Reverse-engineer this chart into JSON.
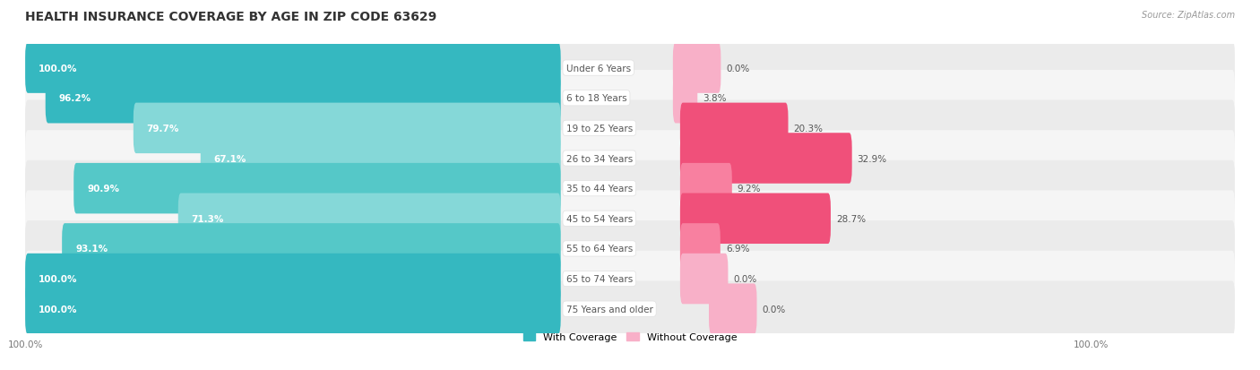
{
  "title": "HEALTH INSURANCE COVERAGE BY AGE IN ZIP CODE 63629",
  "source": "Source: ZipAtlas.com",
  "categories": [
    "Under 6 Years",
    "6 to 18 Years",
    "19 to 25 Years",
    "26 to 34 Years",
    "35 to 44 Years",
    "45 to 54 Years",
    "55 to 64 Years",
    "65 to 74 Years",
    "75 Years and older"
  ],
  "with_coverage": [
    100.0,
    96.2,
    79.7,
    67.1,
    90.9,
    71.3,
    93.1,
    100.0,
    100.0
  ],
  "without_coverage": [
    0.0,
    3.8,
    20.3,
    32.9,
    9.2,
    28.7,
    6.9,
    0.0,
    0.0
  ],
  "color_with_dark": "#35B8C0",
  "color_with_medium": "#55C8C8",
  "color_with_light": "#85D8D8",
  "color_without_dark": "#F0507A",
  "color_without_medium": "#F880A0",
  "color_without_light": "#F8B0C8",
  "bg_odd": "#EBEBEB",
  "bg_even": "#F5F5F5",
  "title_fontsize": 10,
  "bar_label_fontsize": 7.5,
  "category_fontsize": 7.5,
  "legend_fontsize": 8,
  "axis_label_fontsize": 7.5
}
